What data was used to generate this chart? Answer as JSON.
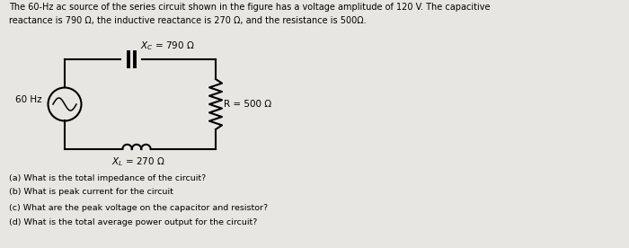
{
  "bg_color": "#e8e6e3",
  "header_text_line1": "The 60-Hz ac source of the series circuit shown in the figure has a voltage amplitude of 120 V. The capacitive",
  "header_text_line2": "reactance is 790 Ω, the inductive reactance is 270 Ω, and the resistance is 500Ω.",
  "label_xc": "$X_C$ = 790 Ω",
  "label_r": "R = 500 Ω",
  "label_xl": "$X_L$ = 270 Ω",
  "label_60hz": "60 Hz",
  "question_a": "(a) What is the total impedance of the circuit?",
  "question_b": "(b) What is peak current for the circuit",
  "question_c": "(c) What are the peak voltage on the capacitor and resistor?",
  "question_d": "(d) What is the total average power output for the circuit?"
}
